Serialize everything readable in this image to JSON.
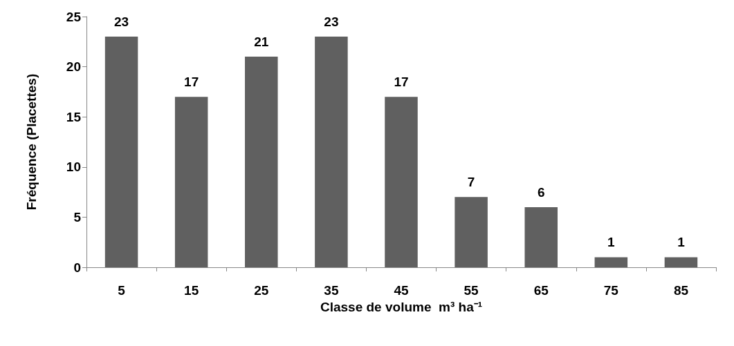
{
  "chart_data": {
    "type": "bar",
    "xlabel": "Classe de volume  m³ ha⁻¹",
    "ylabel": "Fréquence (Placettes)",
    "categories": [
      "5",
      "15",
      "25",
      "35",
      "45",
      "55",
      "65",
      "75",
      "85"
    ],
    "values": [
      23,
      17,
      21,
      23,
      17,
      7,
      6,
      1,
      1
    ],
    "color": "#606060",
    "ylim": [
      0,
      25
    ],
    "yticks": [
      0,
      5,
      10,
      15,
      20,
      25
    ],
    "grid": false,
    "data_labels": true
  }
}
